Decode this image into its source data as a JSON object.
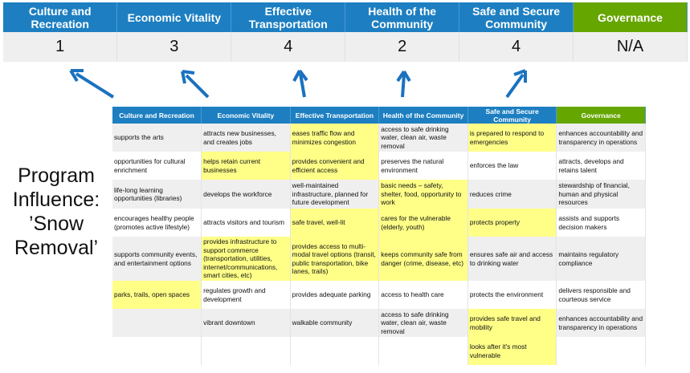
{
  "scores": {
    "headers": [
      "Culture and Recreation",
      "Economic Vitality",
      "Effective Transportation",
      "Health of the Community",
      "Safe and Secure Community",
      "Governance"
    ],
    "values": [
      "1",
      "3",
      "4",
      "2",
      "4",
      "N/A"
    ]
  },
  "program_label": [
    "Program",
    "Influence:",
    "’Snow",
    "Removal’"
  ],
  "colors": {
    "header_blue": "#1d7fc1",
    "governance_green": "#66a600",
    "highlight_yellow": "#ffff88",
    "arrow_blue": "#1a72bf"
  },
  "matrix": {
    "headers": [
      "Culture and Recreation",
      "Economic Vitality",
      "Effective Transportation",
      "Health of the Community",
      "Safe and Secure Community",
      "Governance"
    ],
    "rows": [
      {
        "cells": [
          "supports the arts",
          "attracts new businesses, and creates jobs",
          "eases traffic flow and minimizes congestion",
          "access to safe drinking water, clean air, waste removal",
          "is prepared to respond to emergencies",
          "enhances accountability and transparency in operations"
        ],
        "highlight": [
          false,
          false,
          true,
          false,
          true,
          false
        ]
      },
      {
        "cells": [
          "opportunities for cultural enrichment",
          "helps retain current businesses",
          "provides convenient and efficient access",
          "preserves the natural environment",
          "enforces the law",
          "attracts, develops and retains talent"
        ],
        "highlight": [
          false,
          true,
          true,
          false,
          false,
          false
        ]
      },
      {
        "cells": [
          "life-long learning opportunities (libraries)",
          "develops the workforce",
          "well-maintained infrastructure, planned for future development",
          "basic needs – safety, shelter, food, opportunity to work",
          "reduces crime",
          "stewardship of financial, human and physical resources"
        ],
        "highlight": [
          false,
          false,
          false,
          true,
          false,
          false
        ]
      },
      {
        "cells": [
          "encourages healthy people (promotes active lifestyle)",
          "attracts visitors and tourism",
          "safe travel, well-lit",
          "cares for the vulnerable (elderly, youth)",
          "protects property",
          "assists and supports decision makers"
        ],
        "highlight": [
          false,
          false,
          true,
          true,
          true,
          false
        ]
      },
      {
        "cells": [
          "supports community events, and entertainment options",
          "provides infrastructure to support commerce (transportation, utilities, internet/communications, smart cities, etc)",
          "provides access to multi-modal travel options (transit, public transportation, bike lanes, trails)",
          "keeps community safe from danger (crime, disease, etc)",
          "ensures safe air and access to drinking water",
          "maintains regulatory compliance"
        ],
        "highlight": [
          false,
          true,
          true,
          true,
          false,
          false
        ]
      },
      {
        "cells": [
          "parks, trails, open spaces",
          "regulates growth and development",
          "provides adequate parking",
          "access to health care",
          "protects the environment",
          "delivers responsible and courteous service"
        ],
        "highlight": [
          true,
          false,
          false,
          false,
          false,
          false
        ]
      },
      {
        "cells": [
          "",
          "vibrant downtown",
          "walkable community",
          "access to safe drinking water, clean air, waste removal",
          "provides safe travel and mobility",
          "enhances accountability and transparency in operations"
        ],
        "highlight": [
          false,
          false,
          false,
          false,
          true,
          false
        ]
      },
      {
        "cells": [
          "",
          "",
          "",
          "",
          "looks after it's most vulnerable",
          ""
        ],
        "highlight": [
          false,
          false,
          false,
          false,
          true,
          false
        ]
      }
    ]
  }
}
